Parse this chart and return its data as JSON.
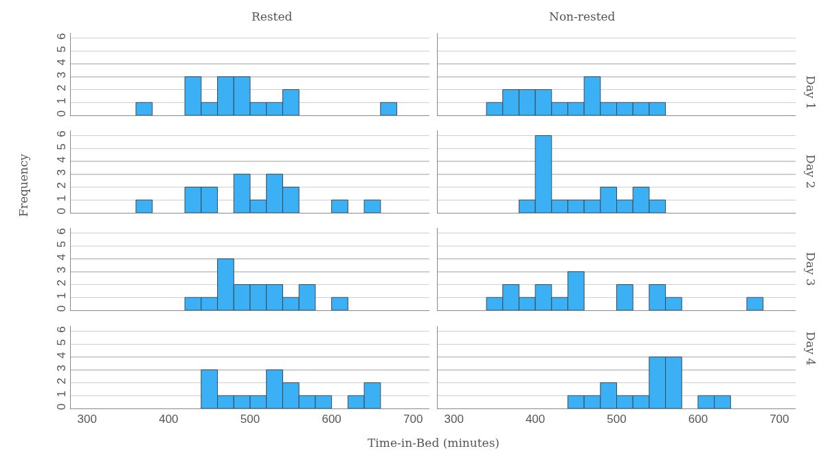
{
  "chart_data": [
    {
      "type": "histogram",
      "title": "Rested",
      "bins": [
        340,
        360,
        380,
        400,
        420,
        440,
        460,
        480,
        500,
        520,
        540,
        560,
        580,
        600,
        620,
        640,
        660,
        680
      ],
      "values": [
        0,
        1,
        0,
        0,
        3,
        1,
        3,
        3,
        1,
        1,
        2,
        0,
        0,
        0,
        0,
        0,
        1
      ],
      "color": "#3bb0f5",
      "xlim": [
        280,
        720
      ],
      "ylim": [
        0,
        6.4
      ],
      "xticks": [
        300,
        400,
        500,
        600,
        700
      ],
      "yticks": [
        0,
        1,
        2,
        3,
        4,
        5,
        6
      ],
      "grid": "y",
      "legend": false,
      "tick_labels": "y"
    },
    {
      "type": "histogram",
      "title": "Non-rested",
      "y2label": "Day 1",
      "bins": [
        340,
        360,
        380,
        400,
        420,
        440,
        460,
        480,
        500,
        520,
        540,
        560,
        580,
        600,
        620,
        640,
        660,
        680
      ],
      "values": [
        1,
        2,
        2,
        2,
        1,
        1,
        3,
        1,
        1,
        1,
        1,
        0,
        0,
        0,
        0,
        0,
        0
      ],
      "color": "#3bb0f5",
      "xlim": [
        280,
        720
      ],
      "ylim": [
        0,
        6.4
      ],
      "xticks": [
        300,
        400,
        500,
        600,
        700
      ],
      "yticks": [
        0,
        1,
        2,
        3,
        4,
        5,
        6
      ],
      "grid": "y",
      "legend": false,
      "tick_labels": false
    },
    {
      "type": "histogram",
      "ylabel": "Frequency",
      "bins": [
        340,
        360,
        380,
        400,
        420,
        440,
        460,
        480,
        500,
        520,
        540,
        560,
        580,
        600,
        620,
        640,
        660,
        680
      ],
      "values": [
        0,
        1,
        0,
        0,
        2,
        2,
        0,
        3,
        1,
        3,
        2,
        0,
        0,
        1,
        0,
        1,
        0
      ],
      "color": "#3bb0f5",
      "xlim": [
        280,
        720
      ],
      "ylim": [
        0,
        6.4
      ],
      "xticks": [
        300,
        400,
        500,
        600,
        700
      ],
      "yticks": [
        0,
        1,
        2,
        3,
        4,
        5,
        6
      ],
      "grid": "y",
      "legend": false,
      "tick_labels": "y"
    },
    {
      "type": "histogram",
      "y2label": "Day 2",
      "bins": [
        340,
        360,
        380,
        400,
        420,
        440,
        460,
        480,
        500,
        520,
        540,
        560,
        580,
        600,
        620,
        640,
        660,
        680
      ],
      "values": [
        0,
        0,
        1,
        6,
        1,
        1,
        1,
        2,
        1,
        2,
        1,
        0,
        0,
        0,
        0,
        0,
        0
      ],
      "color": "#3bb0f5",
      "xlim": [
        280,
        720
      ],
      "ylim": [
        0,
        6.4
      ],
      "xticks": [
        300,
        400,
        500,
        600,
        700
      ],
      "yticks": [
        0,
        1,
        2,
        3,
        4,
        5,
        6
      ],
      "grid": "y",
      "legend": false,
      "tick_labels": false
    },
    {
      "type": "histogram",
      "bins": [
        340,
        360,
        380,
        400,
        420,
        440,
        460,
        480,
        500,
        520,
        540,
        560,
        580,
        600,
        620,
        640,
        660,
        680
      ],
      "values": [
        0,
        0,
        0,
        0,
        1,
        1,
        4,
        2,
        2,
        2,
        1,
        2,
        0,
        1,
        0,
        0,
        0
      ],
      "color": "#3bb0f5",
      "xlim": [
        280,
        720
      ],
      "ylim": [
        0,
        6.4
      ],
      "xticks": [
        300,
        400,
        500,
        600,
        700
      ],
      "yticks": [
        0,
        1,
        2,
        3,
        4,
        5,
        6
      ],
      "grid": "y",
      "legend": false,
      "tick_labels": "y"
    },
    {
      "type": "histogram",
      "y2label": "Day 3",
      "bins": [
        340,
        360,
        380,
        400,
        420,
        440,
        460,
        480,
        500,
        520,
        540,
        560,
        580,
        600,
        620,
        640,
        660,
        680
      ],
      "values": [
        1,
        2,
        1,
        2,
        1,
        3,
        0,
        0,
        2,
        0,
        2,
        1,
        0,
        0,
        0,
        0,
        1
      ],
      "color": "#3bb0f5",
      "xlim": [
        280,
        720
      ],
      "ylim": [
        0,
        6.4
      ],
      "xticks": [
        300,
        400,
        500,
        600,
        700
      ],
      "yticks": [
        0,
        1,
        2,
        3,
        4,
        5,
        6
      ],
      "grid": "y",
      "legend": false,
      "tick_labels": false
    },
    {
      "type": "histogram",
      "xlabel": "Time-in-Bed (minutes)",
      "bins": [
        340,
        360,
        380,
        400,
        420,
        440,
        460,
        480,
        500,
        520,
        540,
        560,
        580,
        600,
        620,
        640,
        660,
        680
      ],
      "values": [
        0,
        0,
        0,
        0,
        0,
        3,
        1,
        1,
        1,
        3,
        2,
        1,
        1,
        0,
        1,
        2,
        0
      ],
      "color": "#3bb0f5",
      "xlim": [
        280,
        720
      ],
      "ylim": [
        0,
        6.4
      ],
      "xticks": [
        300,
        400,
        500,
        600,
        700
      ],
      "yticks": [
        0,
        1,
        2,
        3,
        4,
        5,
        6
      ],
      "grid": "y",
      "legend": false
    },
    {
      "type": "histogram",
      "y2label": "Day 4",
      "bins": [
        340,
        360,
        380,
        400,
        420,
        440,
        460,
        480,
        500,
        520,
        540,
        560,
        580,
        600,
        620,
        640,
        660,
        680
      ],
      "values": [
        0,
        0,
        0,
        0,
        0,
        1,
        1,
        2,
        1,
        1,
        4,
        4,
        0,
        1,
        1,
        0,
        0
      ],
      "color": "#3bb0f5",
      "xlim": [
        280,
        720
      ],
      "ylim": [
        0,
        6.4
      ],
      "xticks": [
        300,
        400,
        500,
        600,
        700
      ],
      "yticks": [
        0,
        1,
        2,
        3,
        4,
        5,
        6
      ],
      "grid": "y",
      "legend": false,
      "tick_labels": "x"
    }
  ]
}
